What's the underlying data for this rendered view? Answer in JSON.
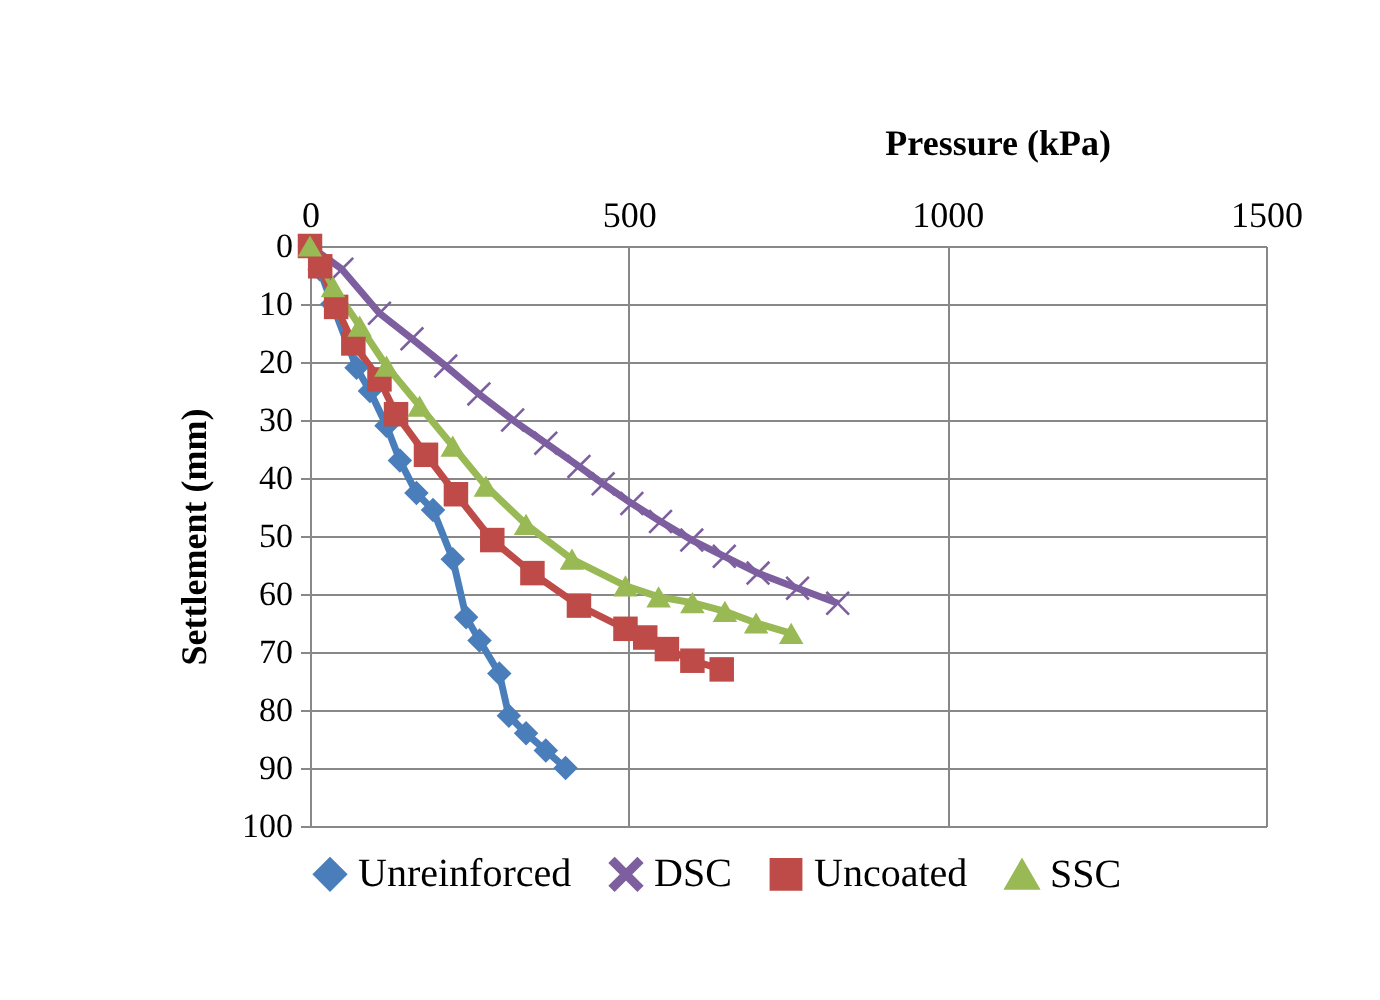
{
  "chart_data": {
    "type": "line",
    "xlabel": "Pressure (kPa)",
    "ylabel": "Settlement (mm)",
    "xlim": [
      0,
      1500
    ],
    "xticks": [
      0,
      500,
      1000,
      1500
    ],
    "ylim": [
      100,
      0
    ],
    "yticks": [
      0,
      10,
      20,
      30,
      40,
      50,
      60,
      70,
      80,
      90,
      100
    ],
    "grid": true,
    "legend": "bottom",
    "series": [
      {
        "name": "Unreinforced",
        "color": "#4a7ebb",
        "marker": "diamond",
        "x": [
          0,
          15,
          35,
          73,
          94,
          120,
          141,
          167,
          193,
          224,
          245,
          266,
          297,
          312,
          339,
          370,
          401
        ],
        "values": [
          0,
          4,
          10,
          21,
          25,
          31,
          37,
          42.6,
          45.5,
          54,
          64,
          68,
          73.7,
          81,
          84,
          87,
          90
        ]
      },
      {
        "name": "DSC",
        "color": "#7d5fa0",
        "marker": "cross",
        "x": [
          0,
          50,
          109,
          160,
          213,
          265,
          318,
          370,
          422,
          460,
          505,
          550,
          599,
          650,
          703,
          765,
          828
        ],
        "values": [
          0,
          4,
          11.6,
          16,
          20.7,
          25.5,
          30,
          34,
          38,
          41,
          44.4,
          47.5,
          50.7,
          53.5,
          56.4,
          59,
          61.6
        ]
      },
      {
        "name": "Uncoated",
        "color": "#be4b48",
        "marker": "square",
        "x": [
          0,
          16,
          41,
          68,
          109,
          135,
          182,
          229,
          286,
          349,
          422,
          495,
          526,
          560,
          600,
          646
        ],
        "values": [
          0,
          3.5,
          10.5,
          16.8,
          23,
          29,
          36,
          42.8,
          50.7,
          56.4,
          62,
          66,
          67.5,
          69.5,
          71.5,
          73
        ]
      },
      {
        "name": "SSC",
        "color": "#98b954",
        "marker": "triangle",
        "x": [
          0,
          36,
          78,
          120,
          172,
          224,
          276,
          339,
          411,
          495,
          547,
          600,
          651,
          700,
          755
        ],
        "values": [
          0,
          7,
          13.8,
          20.7,
          27.6,
          34.5,
          41.4,
          48,
          54,
          58.6,
          60.5,
          61.5,
          63,
          65,
          66.8
        ]
      }
    ]
  }
}
